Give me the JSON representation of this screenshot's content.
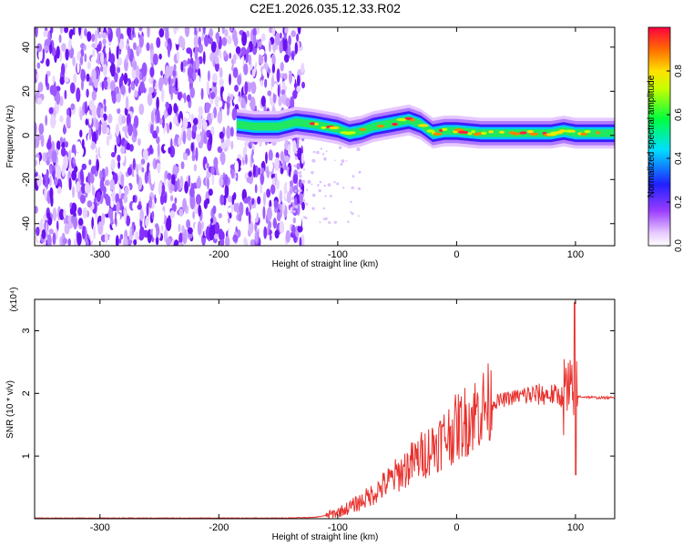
{
  "title": "C2E1.2026.035.12.33.R02",
  "colors": {
    "snr_line": "#e8322e",
    "speckle": "#7b2cff",
    "frame": "#000000"
  },
  "chart_data": [
    {
      "type": "heatmap",
      "xlabel": "Height of straight line (km)",
      "ylabel": "Frequency (Hz)",
      "xlim": [
        -355,
        133
      ],
      "ylim": [
        -50,
        49
      ],
      "xticks": [
        -300,
        -200,
        -100,
        0,
        100
      ],
      "yticks": [
        -40,
        -20,
        0,
        20,
        40
      ],
      "x_tick_labels": [
        "-300",
        "-200",
        "-100",
        "0",
        "100"
      ],
      "y_tick_labels": [
        "-40",
        "-20",
        "0",
        "20",
        "40"
      ],
      "noise_region_x": [
        -355,
        -135
      ],
      "signal_start_x": -185,
      "colorbar": {
        "label": "Normalized spectral amplitude",
        "range": [
          0.0,
          1.0
        ],
        "ticks": [
          0.0,
          0.2,
          0.4,
          0.6,
          0.8
        ],
        "tick_labels": [
          "0.0",
          "0.2",
          "0.4",
          "0.6",
          "0.8"
        ],
        "colormap": "rainbow (white-violet-purple-blue-cyan-green-yellow-orange-red)"
      },
      "signal_ridge": {
        "x": [
          -185,
          -170,
          -150,
          -135,
          -120,
          -100,
          -90,
          -80,
          -70,
          -60,
          -50,
          -40,
          -30,
          -25,
          -20,
          -10,
          0,
          20,
          40,
          60,
          80,
          90,
          100,
          120,
          133
        ],
        "frequency": [
          5,
          4,
          4,
          6,
          5,
          3,
          1,
          2,
          4,
          5,
          6,
          7,
          5,
          3,
          1,
          2,
          2,
          1,
          1,
          1,
          1,
          2,
          1,
          1,
          1
        ]
      }
    },
    {
      "type": "line",
      "xlabel": "Height of straight line (km)",
      "ylabel": "SNR (10 * v/v)",
      "y_scale_note": "(x10⁴)",
      "xlim": [
        -355,
        133
      ],
      "ylim": [
        0,
        3.5
      ],
      "xticks": [
        -300,
        -200,
        -100,
        0,
        100
      ],
      "yticks": [
        1,
        2,
        3
      ],
      "x_tick_labels": [
        "-300",
        "-200",
        "-100",
        "0",
        "100"
      ],
      "y_tick_labels": [
        "1",
        "2",
        "3"
      ],
      "series": [
        {
          "x": [
            -355,
            -300,
            -200,
            -150,
            -120,
            -110,
            -100,
            -90,
            -80,
            -70,
            -60,
            -50,
            -40,
            -30,
            -20,
            -10,
            0,
            10,
            20,
            30,
            40,
            50,
            60,
            70,
            80,
            90,
            95,
            98,
            100,
            102,
            110,
            120,
            133
          ],
          "y": [
            0.01,
            0.01,
            0.01,
            0.01,
            0.02,
            0.05,
            0.1,
            0.18,
            0.28,
            0.4,
            0.55,
            0.7,
            0.85,
            1.0,
            1.15,
            1.3,
            1.45,
            1.6,
            1.75,
            1.85,
            1.9,
            1.95,
            1.97,
            1.98,
            1.98,
            1.95,
            2.0,
            1.7,
            1.9,
            1.95,
            1.94,
            1.93,
            1.93
          ]
        }
      ]
    }
  ]
}
